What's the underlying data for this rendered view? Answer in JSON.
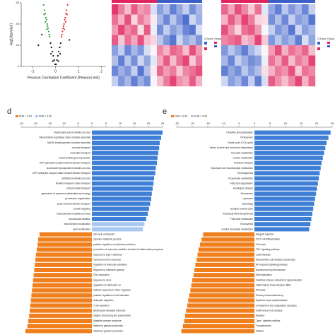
{
  "chart_data": [
    {
      "type": "scatter",
      "ylabel": "-log10(pvalue)",
      "xlabel": "Pearson Correlation Coefficient (Pearson test)",
      "xlim": [
        -1.5,
        2.2
      ],
      "xticks": [
        -1,
        0,
        1,
        2
      ],
      "ylim": [
        0,
        60
      ],
      "yticks": [
        0,
        20,
        40,
        60
      ],
      "series": [
        {
          "color": "#2e9e3e",
          "x": [
            -0.52,
            -0.48,
            -0.45,
            -0.42,
            -0.4,
            -0.37,
            -0.35,
            -0.33,
            -0.3,
            -0.28,
            -0.26,
            -0.38,
            -0.44,
            -0.5
          ],
          "y": [
            58,
            53,
            50,
            46,
            44,
            40,
            38,
            36,
            33,
            30,
            28,
            35,
            42,
            49
          ]
        },
        {
          "color": "#111111",
          "x": [
            -0.22,
            -0.18,
            -0.14,
            -0.1,
            -0.06,
            -0.02,
            0.02,
            0.06,
            0.1,
            0.14,
            0.18,
            0.22,
            -0.2,
            0.2,
            -0.12,
            0.12,
            -0.6,
            -0.75,
            0.6
          ],
          "y": [
            22,
            18,
            14,
            10,
            6,
            2,
            2,
            6,
            10,
            14,
            18,
            22,
            12,
            12,
            5,
            5,
            30,
            20,
            25
          ]
        },
        {
          "color": "#e0302a",
          "x": [
            0.26,
            0.28,
            0.3,
            0.33,
            0.35,
            0.37,
            0.4,
            0.42,
            0.45,
            0.48,
            0.52,
            0.38,
            0.44,
            0.5
          ],
          "y": [
            28,
            30,
            33,
            36,
            38,
            40,
            44,
            46,
            50,
            53,
            58,
            35,
            42,
            49
          ]
        }
      ]
    },
    {
      "type": "heatmap",
      "legend_title": "Z-Score",
      "group_title": "Group",
      "zlim": [
        -2,
        2
      ],
      "colors": [
        "#3b5fc9",
        "#ffffff",
        "#e0245e"
      ],
      "group_colors": [
        "#e0245e",
        "#3b5fc9"
      ],
      "values": [
        [
          1.8,
          1.2,
          0.6,
          1.5,
          0.9,
          1.1,
          -0.4,
          -1.2,
          -0.8,
          -1.6,
          -1.1,
          -0.6,
          -1.4,
          -0.9
        ],
        [
          1.3,
          0.7,
          1.6,
          0.4,
          1.2,
          0.8,
          0.2,
          -0.9,
          -1.5,
          -0.7,
          -1.3,
          -1.8,
          -0.5,
          -1.0
        ],
        [
          0.9,
          1.7,
          1.1,
          1.4,
          0.3,
          1.5,
          -0.2,
          -1.4,
          -0.6,
          -1.2,
          -0.9,
          -1.5,
          -1.7,
          -0.4
        ],
        [
          1.5,
          0.5,
          1.3,
          0.8,
          1.6,
          0.6,
          0.4,
          -0.7,
          -1.3,
          -1.7,
          -0.5,
          -1.1,
          -0.8,
          -1.3
        ],
        [
          -1.2,
          -0.6,
          -1.5,
          -0.9,
          -1.3,
          -0.4,
          0.1,
          1.1,
          0.7,
          1.4,
          1.2,
          0.6,
          1.6,
          0.9
        ],
        [
          -0.8,
          -1.6,
          -0.7,
          -1.4,
          -0.5,
          -1.1,
          -0.3,
          0.8,
          1.5,
          0.6,
          1.3,
          1.7,
          0.5,
          1.2
        ],
        [
          -1.5,
          -1.0,
          -1.3,
          -0.6,
          -1.7,
          -0.8,
          0.2,
          1.4,
          0.9,
          1.2,
          0.5,
          1.1,
          1.3,
          1.6
        ],
        [
          -0.6,
          -1.3,
          -0.9,
          -1.6,
          -1.0,
          -1.4,
          -0.1,
          0.6,
          1.2,
          1.7,
          1.0,
          0.8,
          1.5,
          0.7
        ]
      ]
    },
    {
      "type": "heatmap",
      "legend_title": "Z-Score",
      "group_title": "Group",
      "zlim": [
        -2,
        2
      ],
      "colors": [
        "#3b5fc9",
        "#ffffff",
        "#e0245e"
      ],
      "group_colors": [
        "#e0245e",
        "#3b5fc9"
      ],
      "values": [
        [
          1.4,
          0.8,
          1.6,
          1.1,
          0.5,
          1.3,
          -0.3,
          -1.1,
          -1.6,
          -0.7,
          -1.3,
          -0.9,
          -1.5,
          -0.6
        ],
        [
          0.7,
          1.5,
          0.9,
          1.7,
          1.2,
          0.4,
          0.3,
          -1.4,
          -0.8,
          -1.5,
          -0.6,
          -1.2,
          -1.0,
          -1.7
        ],
        [
          1.6,
          1.0,
          0.4,
          1.3,
          1.5,
          0.9,
          -0.1,
          -0.6,
          -1.3,
          -1.0,
          -1.7,
          -0.5,
          -1.2,
          -0.9
        ],
        [
          1.1,
          1.3,
          1.5,
          0.6,
          0.8,
          1.7,
          0.5,
          -1.3,
          -0.7,
          -1.2,
          -0.9,
          -1.6,
          -0.4,
          -1.1
        ],
        [
          -1.3,
          -0.7,
          -1.1,
          -1.6,
          -0.9,
          -0.5,
          0.1,
          0.9,
          1.6,
          0.7,
          1.3,
          1.0,
          1.4,
          0.6
        ],
        [
          -0.9,
          -1.5,
          -0.6,
          -1.0,
          -1.4,
          -1.2,
          -0.2,
          1.3,
          0.8,
          1.5,
          0.6,
          1.2,
          0.9,
          1.7
        ],
        [
          -1.6,
          -1.1,
          -1.4,
          -0.7,
          -1.2,
          -0.8,
          0.3,
          0.7,
          1.2,
          1.0,
          1.6,
          0.5,
          1.3,
          1.1
        ],
        [
          -0.5,
          -1.2,
          -0.9,
          -1.5,
          -0.6,
          -1.6,
          -0.4,
          1.5,
          1.0,
          0.6,
          1.1,
          1.7,
          0.7,
          1.4
        ]
      ]
    },
    {
      "type": "barh",
      "panel": "d",
      "xlim": [
        -25,
        25
      ],
      "xticks": [
        -25,
        -20,
        -15,
        -10,
        -5,
        0,
        5,
        10,
        15,
        20,
        25
      ],
      "legend": [
        {
          "name": "FDR < 0.05",
          "color": "#f07f1e"
        },
        {
          "name": "FDR > 0.05",
          "color": "#a9c9f2"
        }
      ],
      "categories": [
        "tricarboxylic acid metabolic process",
        "mitochondrial respiratory chain complex assembly",
        "NADH dehydrogenase complex assembly",
        "vacuolar transport",
        "nucleotide transport",
        "mitochondrial gene expression",
        "ATP hydrolysis coupled transmembrane transport",
        "nucleoside triphosphate metabolic process",
        "ATP hydrolysis coupled cation transmembrane transport",
        "antibiotic metabolic process",
        "bivalent inorganic cation transport",
        "mitochondrial transport",
        "generation of precursor metabolites and energy",
        "peroxisome organization",
        "proton transmembrane transport",
        "protein targeting",
        "ribonucleotide metabolic process",
        "translational initiation",
        "mitochondrion localization",
        "lipid modification",
        "cell cycle checkpoint",
        "cytokine metabolic process",
        "positive regulation of cytokine production",
        "production of molecular mediator involved in inflammatory response",
        "response to type I interferon",
        "humoral immune response",
        "regulation of leukocyte activation",
        "response to interferon gamma",
        "DNA replication",
        "response to virus",
        "regulation of interleukin-12",
        "defense response to other organism",
        "positive regulation of cell activation",
        "leukocyte migration",
        "T cell activation",
        "lymphocyte mediated immunity",
        "antigen processing and presentation",
        "adaptive immune response",
        "interferon gamma production",
        "interferon-gamma production"
      ],
      "values": [
        25,
        24.5,
        24,
        23.8,
        23.5,
        23.2,
        23,
        22.6,
        22.4,
        22,
        21.8,
        21.5,
        21.2,
        21,
        20.6,
        20.2,
        19.8,
        19.2,
        18.6,
        18,
        -18.5,
        -19,
        -19.2,
        -19.5,
        -19.8,
        -20,
        -20.2,
        -20.4,
        -20.6,
        -20.8,
        -21,
        -21.2,
        -21.4,
        -21.6,
        -21.8,
        -22,
        -22.2,
        -22.5,
        -22.8,
        -23.5
      ],
      "colors": [
        "#3f7fd6",
        "#3f7fd6",
        "#3f7fd6",
        "#3f7fd6",
        "#3f7fd6",
        "#3f7fd6",
        "#3f7fd6",
        "#3f7fd6",
        "#3f7fd6",
        "#3f7fd6",
        "#3f7fd6",
        "#3f7fd6",
        "#3f7fd6",
        "#3f7fd6",
        "#3f7fd6",
        "#3f7fd6",
        "#3f7fd6",
        "#3f7fd6",
        "#a9c9f2",
        "#a9c9f2",
        "#f07f1e",
        "#f07f1e",
        "#f07f1e",
        "#f07f1e",
        "#f07f1e",
        "#f07f1e",
        "#f07f1e",
        "#f07f1e",
        "#f07f1e",
        "#f07f1e",
        "#f07f1e",
        "#f07f1e",
        "#f07f1e",
        "#f07f1e",
        "#f07f1e",
        "#f07f1e",
        "#f07f1e",
        "#f07f1e",
        "#f07f1e",
        "#f07f1e"
      ]
    },
    {
      "type": "barh",
      "panel": "e",
      "xlim": [
        -25,
        25
      ],
      "xticks": [
        -25,
        -20,
        -15,
        -10,
        -5,
        0,
        5,
        10,
        15,
        20,
        25
      ],
      "legend": [
        {
          "name": "FDR < 0.05",
          "color": "#f07f1e"
        },
        {
          "name": "FDR > 0.05",
          "color": "#a9c9f2"
        }
      ],
      "categories": [
        "Oxidative phosphorylation",
        "Proteasome",
        "Citrate cycle (TCA cycle)",
        "Valine, leucine and isoleucine degradation",
        "Pyruvate metabolism",
        "Carbon metabolism",
        "Parkinson disease",
        "Glyoxylate and dicarboxylate metabolism",
        "Thermogenesis",
        "Propanoate metabolism",
        "Fatty acid degradation",
        "Huntington disease",
        "Peroxisome",
        "Lysosome",
        "Autophagy",
        "Synaptic vesicle cycle",
        "Aminoacyl-tRNA biosynthesis",
        "Fatty acid metabolism",
        "Endocytosis",
        "Inositol phosphate metabolism",
        "Allograft rejection",
        "Th17 cell differentiation",
        "Cell cycle",
        "TNF signaling pathway",
        "Leishmaniasis",
        "Natural killer cell mediated cytotoxicity",
        "NF-kappa B signaling pathway",
        "Autoimmune thyroid disease",
        "DNA replication",
        "Intestinal immune network for IgA production",
        "Inflammatory bowel disease (IBD)",
        "Pertussis",
        "Primary immunodeficiency",
        "Systemic lupus erythematosus",
        "Complement and coagulation cascades",
        "Graft-versus-host disease",
        "Measles",
        "Type I diabetes mellitus",
        "Toxoplasmosis",
        "Malaria"
      ],
      "values": [
        24.5,
        23.8,
        23.2,
        22.8,
        22.4,
        22,
        21.6,
        21.3,
        21,
        20.7,
        20.4,
        20.1,
        19.8,
        19.5,
        19.2,
        18.9,
        18.6,
        18.3,
        18,
        17.6,
        -16.5,
        -17,
        -17.5,
        -18,
        -18.3,
        -18.6,
        -19,
        -19.3,
        -19.6,
        -20,
        -20.3,
        -20.6,
        -21,
        -21.3,
        -21.6,
        -22,
        -22.3,
        -22.6,
        -23,
        -23.5
      ],
      "colors": [
        "#3f7fd6",
        "#3f7fd6",
        "#3f7fd6",
        "#3f7fd6",
        "#3f7fd6",
        "#3f7fd6",
        "#3f7fd6",
        "#3f7fd6",
        "#3f7fd6",
        "#3f7fd6",
        "#3f7fd6",
        "#3f7fd6",
        "#3f7fd6",
        "#3f7fd6",
        "#3f7fd6",
        "#3f7fd6",
        "#3f7fd6",
        "#3f7fd6",
        "#3f7fd6",
        "#3f7fd6",
        "#f07f1e",
        "#f07f1e",
        "#f07f1e",
        "#f07f1e",
        "#f07f1e",
        "#f07f1e",
        "#f07f1e",
        "#f07f1e",
        "#f07f1e",
        "#f07f1e",
        "#f07f1e",
        "#f07f1e",
        "#f07f1e",
        "#f07f1e",
        "#f07f1e",
        "#f07f1e",
        "#f07f1e",
        "#f07f1e",
        "#f07f1e",
        "#f07f1e"
      ]
    }
  ]
}
